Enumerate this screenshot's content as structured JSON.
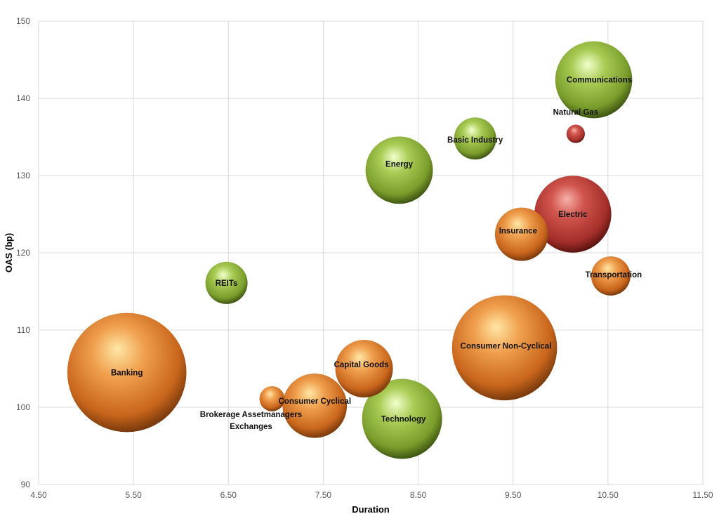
{
  "chart_data": {
    "type": "bubble",
    "title": "",
    "xlabel": "Duration",
    "ylabel": "OAS (bp)",
    "xlim": [
      4.5,
      11.5
    ],
    "ylim": [
      90,
      150
    ],
    "xticks": [
      "4.50",
      "5.50",
      "6.50",
      "7.50",
      "8.50",
      "9.50",
      "10.50",
      "11.50"
    ],
    "yticks": [
      "90",
      "100",
      "110",
      "120",
      "130",
      "140",
      "150"
    ],
    "grid": true,
    "colors": {
      "orange": "#e8862f",
      "green": "#8fb33a",
      "red": "#c0403a"
    },
    "points": [
      {
        "label": "Banking",
        "x": 5.43,
        "y": 104.5,
        "size": 72,
        "color": "orange"
      },
      {
        "label": "Communications",
        "x": 10.35,
        "y": 142.4,
        "size": 30,
        "color": "green"
      },
      {
        "label": "Natural Gas",
        "x": 10.16,
        "y": 135.4,
        "size": 1.7,
        "color": "red"
      },
      {
        "label": "Basic Industry",
        "x": 9.1,
        "y": 134.8,
        "size": 9,
        "color": "green"
      },
      {
        "label": "Energy",
        "x": 8.3,
        "y": 130.7,
        "size": 23,
        "color": "green"
      },
      {
        "label": "Electric",
        "x": 10.13,
        "y": 125.0,
        "size": 30,
        "color": "red"
      },
      {
        "label": "Insurance",
        "x": 9.59,
        "y": 122.4,
        "size": 14.4,
        "color": "orange"
      },
      {
        "label": "Transportation",
        "x": 10.53,
        "y": 117.0,
        "size": 7.8,
        "color": "orange"
      },
      {
        "label": "REITs",
        "x": 6.48,
        "y": 116.1,
        "size": 9,
        "color": "green"
      },
      {
        "label": "Consumer Non-Cyclical",
        "x": 9.41,
        "y": 107.7,
        "size": 56,
        "color": "orange"
      },
      {
        "label": "Capital Goods",
        "x": 7.93,
        "y": 105.0,
        "size": 16.8,
        "color": "orange"
      },
      {
        "label": "Brokerage Assetmanagers Exchanges",
        "label_lines": [
          "Brokerage Assetmanagers",
          "Exchanges"
        ],
        "x": 6.96,
        "y": 101.1,
        "size": 3.2,
        "color": "orange"
      },
      {
        "label": "Consumer Cyclical",
        "x": 7.41,
        "y": 100.2,
        "size": 21,
        "color": "orange"
      },
      {
        "label": "Technology",
        "x": 8.33,
        "y": 98.5,
        "size": 32.5,
        "color": "green"
      }
    ]
  }
}
